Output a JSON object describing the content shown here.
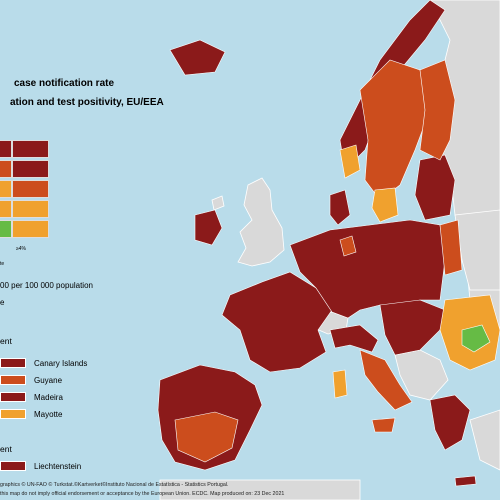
{
  "title": {
    "line1": "case notification rate",
    "line2": "ation and test positivity, EU/EEA"
  },
  "legend_matrix": {
    "x_label_right": "≥4%",
    "x_caption": "te",
    "rows": [
      [
        "#8b1a1a",
        "#8b1a1a"
      ],
      [
        "#cc4d1d",
        "#8b1a1a"
      ],
      [
        "#f0a12e",
        "#cc4d1d"
      ],
      [
        "#f0a12e",
        "#f0a12e"
      ],
      [
        "#66bb45",
        "#f0a12e"
      ]
    ]
  },
  "population_note": "00 per 100 000 population",
  "small_note": "e",
  "outermost_regions": {
    "heading": "ent",
    "items": [
      {
        "label": "Canary Islands",
        "color": "#8b1a1a"
      },
      {
        "label": "Guyane",
        "color": "#cc4d1d"
      },
      {
        "label": "Madeira",
        "color": "#8b1a1a"
      },
      {
        "label": "Mayotte",
        "color": "#f0a12e"
      }
    ]
  },
  "small_countries": {
    "heading": "ent",
    "items": [
      {
        "label": "Liechtenstein",
        "color": "#8b1a1a"
      }
    ]
  },
  "footer": {
    "line1": "graphics © UN-FAO © Turkstat.©Kartverket©Instituto Nacional de Estatística - Statistics Portugal.",
    "line2": "this map do not imply official endorsement or acceptance by the European Union. ECDC. Map produced on: 23 Dec 2021"
  },
  "colors": {
    "sea": "#b9dcea",
    "non_eu": "#d9d9d9",
    "dark_red": "#8b1a1a",
    "red_orange": "#cc4d1d",
    "orange": "#f0a12e",
    "green": "#66bb45",
    "border": "#ffffff"
  }
}
